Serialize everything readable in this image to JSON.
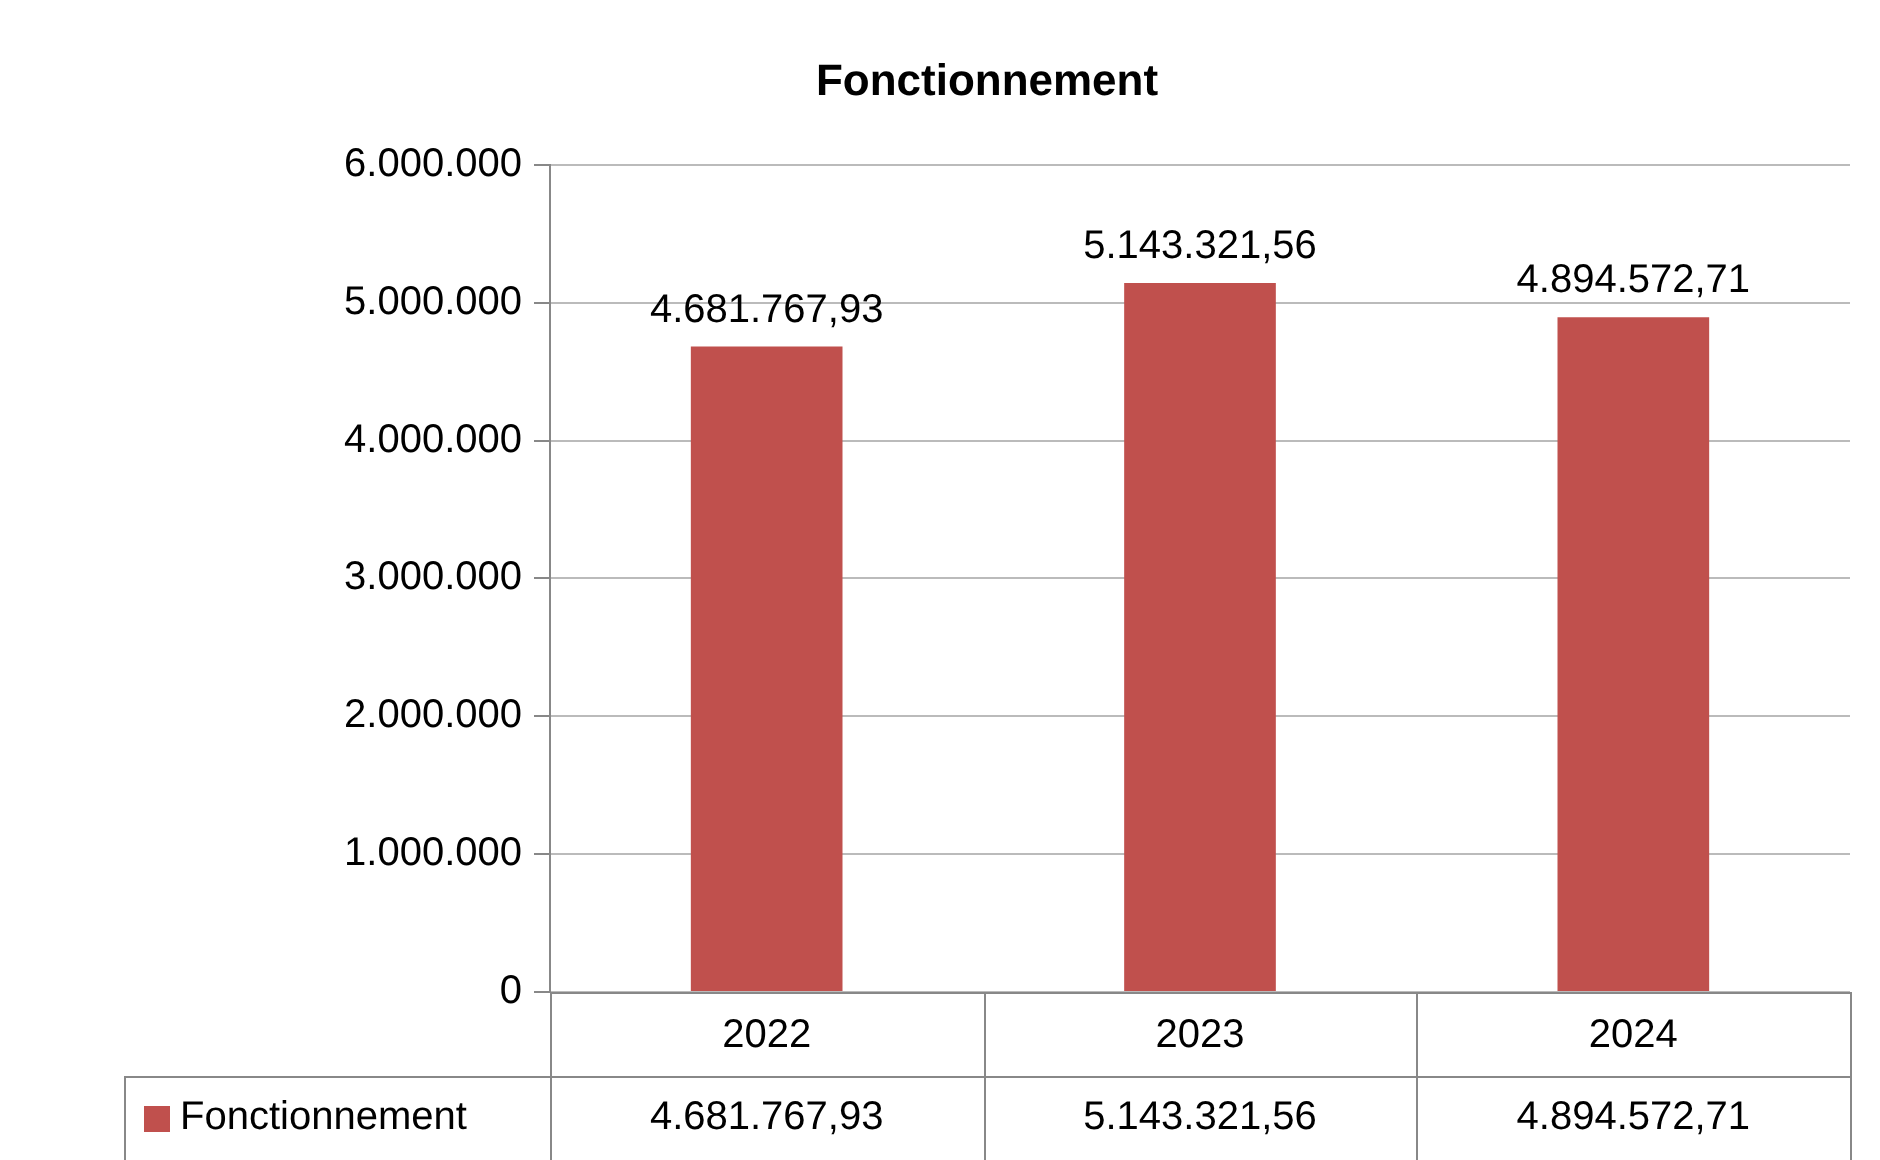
{
  "chart_data": {
    "type": "bar",
    "title": "Fonctionnement",
    "categories": [
      "2022",
      "2023",
      "2024"
    ],
    "series": [
      {
        "name": "Fonctionnement",
        "color": "#c0504d",
        "values": [
          4681767.93,
          5143321.56,
          4894572.71
        ],
        "value_labels": [
          "4.681.767,93",
          "5.143.321,56",
          "4.894.572,71"
        ]
      }
    ],
    "ylim": [
      0,
      6000000
    ],
    "yticks": [
      {
        "value": 0,
        "label": "0"
      },
      {
        "value": 1000000,
        "label": "1.000.000"
      },
      {
        "value": 2000000,
        "label": "2.000.000"
      },
      {
        "value": 3000000,
        "label": "3.000.000"
      },
      {
        "value": 4000000,
        "label": "4.000.000"
      },
      {
        "value": 5000000,
        "label": "5.000.000"
      },
      {
        "value": 6000000,
        "label": "6.000.000"
      }
    ],
    "grid": "y",
    "legend": "bottom"
  }
}
